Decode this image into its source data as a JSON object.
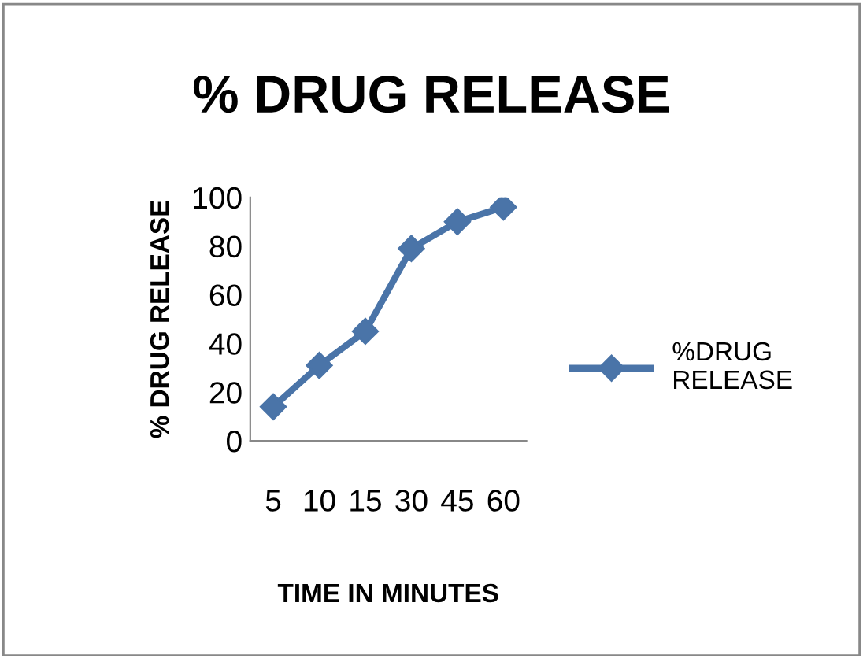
{
  "chart_data": {
    "type": "line",
    "title": "% DRUG RELEASE",
    "xlabel": "TIME IN MINUTES",
    "ylabel": "% DRUG RELEASE",
    "categories": [
      "5",
      "10",
      "15",
      "30",
      "45",
      "60"
    ],
    "series": [
      {
        "name": "%DRUG RELEASE",
        "color": "#4a74a8",
        "values": [
          14,
          31,
          45,
          79,
          90,
          96
        ]
      }
    ],
    "ylim": [
      0,
      100
    ],
    "yticks": [
      0,
      20,
      40,
      60,
      80,
      100
    ],
    "grid": false,
    "legend": "right",
    "marker": "diamond",
    "line_style": "solid"
  }
}
